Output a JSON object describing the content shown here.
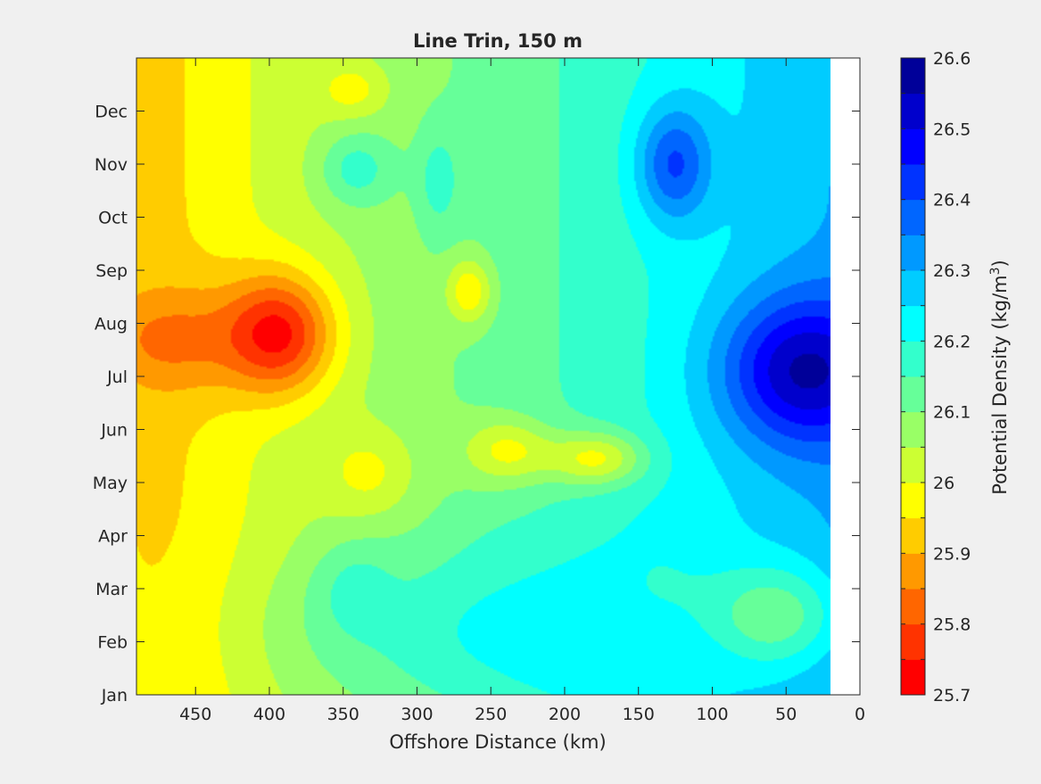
{
  "chart_data": {
    "type": "heatmap",
    "subtype": "filled-contour",
    "title": "Line Trin, 150 m",
    "xlabel": "Offshore Distance (km)",
    "ylabel": "",
    "xlim": [
      490,
      0
    ],
    "x_reversed": true,
    "xticks": [
      450,
      400,
      350,
      300,
      250,
      200,
      150,
      100,
      50,
      0
    ],
    "x_data_range": [
      490,
      20
    ],
    "yticks": [
      "Jan",
      "Feb",
      "Mar",
      "Apr",
      "May",
      "Jun",
      "Jul",
      "Aug",
      "Sep",
      "Oct",
      "Nov",
      "Dec"
    ],
    "ylim_months": [
      1,
      13
    ],
    "colorbar": {
      "label": "Potential Density (kg/m",
      "label_superscript": "3",
      "label_suffix": ")",
      "min": 25.7,
      "max": 26.6,
      "step": 0.05,
      "tick_labels": [
        "26.6",
        "26.5",
        "26.4",
        "26.3",
        "26.2",
        "26.1",
        "26",
        "25.9",
        "25.8",
        "25.7"
      ],
      "tick_values": [
        26.6,
        26.5,
        26.4,
        26.3,
        26.2,
        26.1,
        26.0,
        25.9,
        25.8,
        25.7
      ],
      "colors": [
        "#ff0000",
        "#ff3300",
        "#ff6600",
        "#ff9900",
        "#ffcc00",
        "#ffff00",
        "#ccff33",
        "#99ff66",
        "#66ff99",
        "#33ffcc",
        "#00ffff",
        "#00ccff",
        "#0099ff",
        "#0066ff",
        "#0033ff",
        "#0000ff",
        "#0000cc",
        "#000099"
      ]
    },
    "features": [
      {
        "x": 470,
        "month": 7.7,
        "value": 25.83,
        "rx": 45,
        "ry": 1.0
      },
      {
        "x": 395,
        "month": 7.8,
        "value": 25.72,
        "rx": 38,
        "ry": 1.15
      },
      {
        "x": 345,
        "month": 12.4,
        "value": 25.97,
        "rx": 22,
        "ry": 0.5
      },
      {
        "x": 265,
        "month": 8.6,
        "value": 25.95,
        "rx": 15,
        "ry": 0.6
      },
      {
        "x": 335,
        "month": 5.2,
        "value": 25.98,
        "rx": 30,
        "ry": 0.8
      },
      {
        "x": 240,
        "month": 5.6,
        "value": 25.98,
        "rx": 30,
        "ry": 0.6
      },
      {
        "x": 180,
        "month": 5.45,
        "value": 25.98,
        "rx": 32,
        "ry": 0.5
      },
      {
        "x": 340,
        "month": 10.9,
        "value": 26.18,
        "rx": 25,
        "ry": 0.7
      },
      {
        "x": 285,
        "month": 10.7,
        "value": 26.18,
        "rx": 15,
        "ry": 1.0
      },
      {
        "x": 340,
        "month": 2.9,
        "value": 26.18,
        "rx": 28,
        "ry": 0.9
      },
      {
        "x": 235,
        "month": 2.8,
        "value": 26.2,
        "rx": 30,
        "ry": 1.0
      },
      {
        "x": 140,
        "month": 3.2,
        "value": 26.2,
        "rx": 40,
        "ry": 1.2
      },
      {
        "x": 60,
        "month": 2.5,
        "value": 26.1,
        "rx": 45,
        "ry": 1.0
      },
      {
        "x": 125,
        "month": 11.0,
        "value": 26.42,
        "rx": 25,
        "ry": 1.1
      },
      {
        "x": 35,
        "month": 7.1,
        "value": 26.58,
        "rx": 55,
        "ry": 1.4
      }
    ]
  }
}
